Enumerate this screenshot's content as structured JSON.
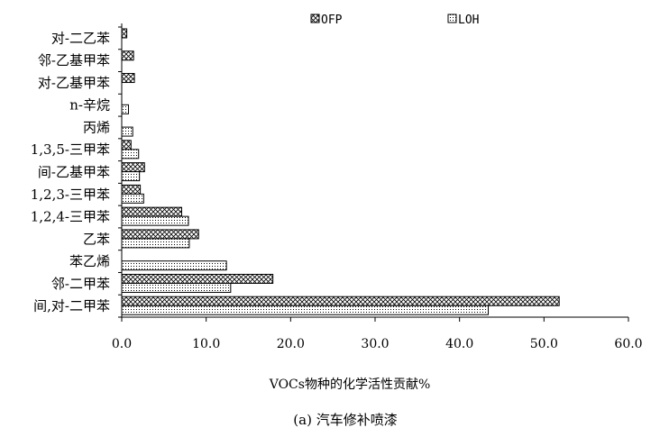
{
  "chart_data": {
    "type": "bar",
    "orientation": "horizontal",
    "categories": [
      "对-二乙苯",
      "邻-乙基甲苯",
      "对-乙基甲苯",
      "n-辛烷",
      "丙烯",
      "1,3,5-三甲苯",
      "间-乙基甲苯",
      "1,2,3-三甲苯",
      "1,2,4-三甲苯",
      "乙苯",
      "苯乙烯",
      "邻-二甲苯",
      "间,对-二甲苯"
    ],
    "series": [
      {
        "name": "OFP",
        "pattern": "crosshatch",
        "values": [
          0.6,
          1.4,
          1.5,
          null,
          null,
          1.1,
          2.7,
          2.2,
          7.1,
          9.1,
          null,
          17.9,
          51.8
        ]
      },
      {
        "name": "LOH",
        "pattern": "dots",
        "values": [
          null,
          null,
          null,
          0.8,
          1.3,
          2.0,
          2.1,
          2.6,
          7.9,
          8.0,
          12.4,
          12.9,
          43.4
        ]
      }
    ],
    "xlabel": "VOCs物种的化学活性贡献%",
    "xlim": [
      0,
      60
    ],
    "xticks": [
      "0.0",
      "10.0",
      "20.0",
      "30.0",
      "40.0",
      "50.0",
      "60.0"
    ],
    "grid": false,
    "legend_position": "top-right",
    "bar_fill": "#ffffff",
    "bar_stroke": "#000000"
  },
  "caption": "(a) 汽车修补喷漆"
}
